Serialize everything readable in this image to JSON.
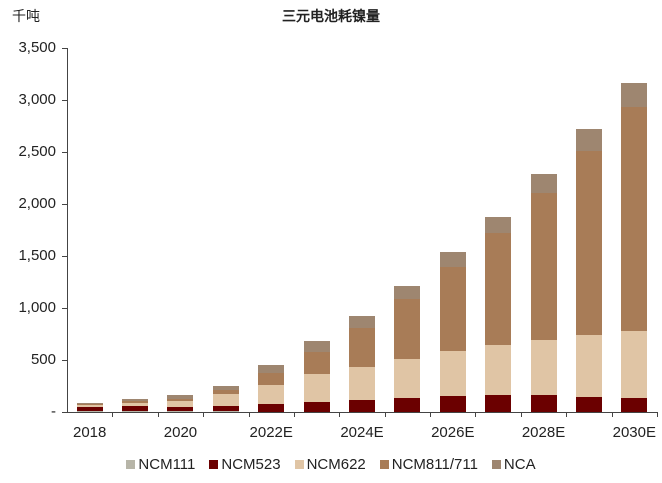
{
  "chart_data": {
    "type": "bar",
    "stacked": true,
    "title": "三元电池耗镍量",
    "unit_label": "千吨",
    "xlabel": "",
    "ylabel": "千吨",
    "ylim": [
      0,
      3500
    ],
    "yticks": [
      0,
      500,
      1000,
      1500,
      2000,
      2500,
      3000,
      3500
    ],
    "ytick_labels": [
      "-",
      "500",
      "1,000",
      "1,500",
      "2,000",
      "2,500",
      "3,000",
      "3,500"
    ],
    "categories": [
      "2018",
      "2019",
      "2020",
      "2021",
      "2022E",
      "2023E",
      "2024E",
      "2025E",
      "2026E",
      "2027E",
      "2028E",
      "2029E",
      "2030E"
    ],
    "xtick_labels_shown": [
      "2018",
      "2020",
      "2022E",
      "2024E",
      "2026E",
      "2028E",
      "2030E"
    ],
    "legend_position": "bottom",
    "grid": false,
    "series": [
      {
        "name": "NCM111",
        "color": "#b7b5a8",
        "values": [
          5,
          5,
          5,
          5,
          0,
          0,
          0,
          0,
          0,
          0,
          0,
          0,
          0
        ]
      },
      {
        "name": "NCM523",
        "color": "#6b0000",
        "values": [
          45,
          50,
          45,
          55,
          75,
          100,
          115,
          130,
          155,
          160,
          160,
          145,
          135
        ]
      },
      {
        "name": "NCM622",
        "color": "#e0c5a5",
        "values": [
          15,
          30,
          55,
          115,
          185,
          265,
          320,
          380,
          430,
          480,
          535,
          595,
          645
        ]
      },
      {
        "name": "NCM811/711",
        "color": "#a87c57",
        "values": [
          10,
          20,
          25,
          35,
          120,
          215,
          370,
          580,
          810,
          1085,
          1410,
          1770,
          2150
        ]
      },
      {
        "name": "NCA",
        "color": "#9e8670",
        "values": [
          15,
          25,
          30,
          40,
          75,
          105,
          120,
          120,
          145,
          155,
          185,
          210,
          230
        ]
      }
    ],
    "totals": [
      90,
      130,
      160,
      250,
      455,
      685,
      925,
      1210,
      1540,
      1880,
      2290,
      2720,
      3160
    ]
  }
}
